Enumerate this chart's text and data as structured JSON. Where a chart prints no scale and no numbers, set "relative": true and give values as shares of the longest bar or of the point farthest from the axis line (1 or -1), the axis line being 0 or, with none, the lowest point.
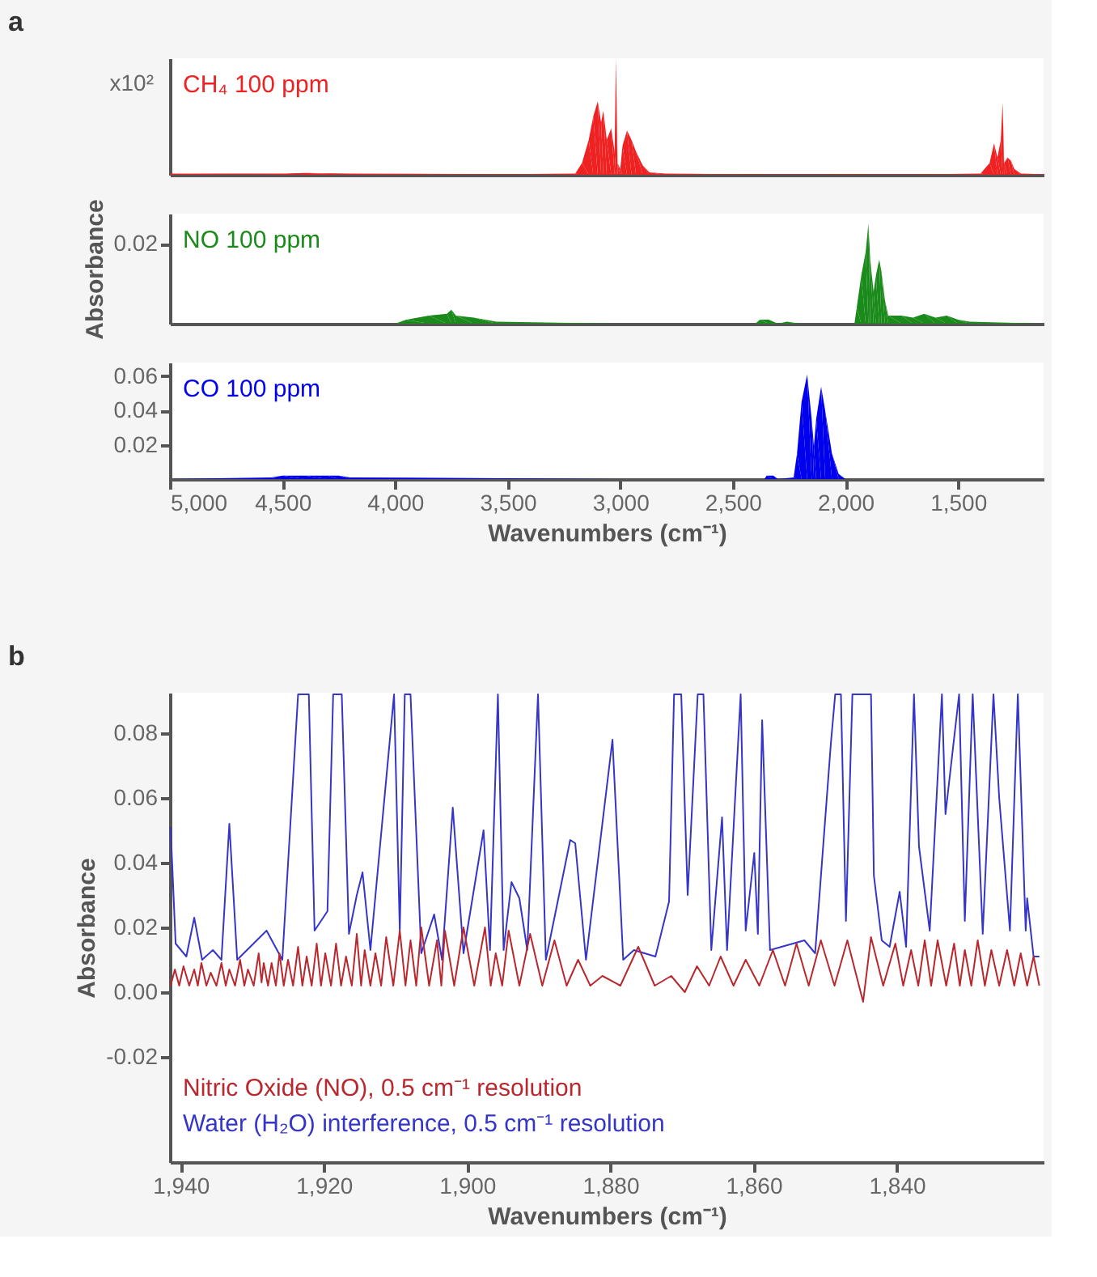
{
  "chart_data": [
    {
      "type": "area",
      "relative": true,
      "tick_labels": false,
      "xlim": [
        5000,
        1120
      ],
      "annotations": [
        "a",
        "x10²"
      ],
      "series": [
        {
          "name": "CH₄ 100 ppm",
          "color": "#ee2222",
          "x": [
            5000,
            4500,
            4400,
            4200,
            3500,
            3200,
            3170,
            3140,
            3120,
            3100,
            3085,
            3075,
            3060,
            3040,
            3025,
            3019,
            3012,
            3000,
            2990,
            2970,
            2950,
            2930,
            2900,
            2870,
            2800,
            2500,
            2000,
            1600,
            1400,
            1360,
            1340,
            1325,
            1310,
            1302,
            1295,
            1280,
            1265,
            1250,
            1220,
            1120
          ],
          "values": [
            0.01,
            0.01,
            0.015,
            0.01,
            0.005,
            0.01,
            0.1,
            0.3,
            0.5,
            0.63,
            0.45,
            0.55,
            0.3,
            0.4,
            0.2,
            1,
            0.1,
            0.05,
            0.25,
            0.38,
            0.3,
            0.2,
            0.08,
            0.02,
            0.01,
            0.005,
            0.005,
            0.005,
            0.01,
            0.1,
            0.27,
            0.15,
            0.3,
            0.62,
            0.1,
            0.15,
            0.12,
            0.05,
            0.01,
            0.005
          ]
        }
      ]
    },
    {
      "type": "area",
      "tick_labels": "y",
      "xlim": [
        5000,
        1120
      ],
      "ylim": [
        0,
        0.0275
      ],
      "yticks": [
        0.02
      ],
      "ylabel": "Absorbance",
      "series": [
        {
          "name": "NO 100 ppm",
          "color": "#1a8a1a",
          "x": [
            5000,
            4000,
            3950,
            3850,
            3770,
            3750,
            3730,
            3650,
            3550,
            3000,
            2400,
            2380,
            2340,
            2300,
            2260,
            2200,
            1960,
            1950,
            1930,
            1910,
            1898,
            1890,
            1875,
            1865,
            1850,
            1840,
            1825,
            1810,
            1750,
            1700,
            1650,
            1600,
            1550,
            1500,
            1450,
            1120
          ],
          "values": [
            0,
            0,
            0.001,
            0.002,
            0.0025,
            0.0035,
            0.002,
            0.0015,
            0.0005,
            0,
            0,
            0.001,
            0.001,
            0,
            0.0005,
            0,
            0,
            0.004,
            0.012,
            0.018,
            0.025,
            0.016,
            0.008,
            0.012,
            0.016,
            0.013,
            0.006,
            0.002,
            0.002,
            0.0015,
            0.0025,
            0.0015,
            0.002,
            0.001,
            0.0005,
            0
          ]
        }
      ]
    },
    {
      "type": "area",
      "xlim": [
        5000,
        1120
      ],
      "xticks": [
        {
          "value": 5000,
          "label": "5,000"
        },
        {
          "value": 4500,
          "label": "4,500"
        },
        {
          "value": 4000,
          "label": "4,000"
        },
        {
          "value": 3500,
          "label": "3,500"
        },
        {
          "value": 3000,
          "label": "3,000"
        },
        {
          "value": 2500,
          "label": "2,500"
        },
        {
          "value": 2000,
          "label": "2,000"
        },
        {
          "value": 1500,
          "label": "1,500"
        }
      ],
      "ylim": [
        0,
        0.068
      ],
      "yticks": [
        0.02,
        0.04,
        0.06
      ],
      "xlabel": "Wavenumbers (cm⁻¹)",
      "series": [
        {
          "name": "CO 100 ppm",
          "color": "#0000ee",
          "x": [
            5000,
            4550,
            4500,
            4400,
            4300,
            4250,
            4200,
            3000,
            2360,
            2350,
            2320,
            2300,
            2230,
            2215,
            2195,
            2170,
            2150,
            2140,
            2130,
            2108,
            2090,
            2060,
            2030,
            2000,
            1120
          ],
          "values": [
            0,
            0.001,
            0.002,
            0.002,
            0.002,
            0.002,
            0.001,
            0,
            0,
            0.002,
            0.002,
            0,
            0.001,
            0.015,
            0.045,
            0.061,
            0.035,
            0.019,
            0.035,
            0.054,
            0.04,
            0.015,
            0.003,
            0,
            0
          ]
        }
      ]
    },
    {
      "type": "line",
      "xlim": [
        1941.5,
        1819.5
      ],
      "ylim": [
        -0.0525,
        0.0925
      ],
      "xticks": [
        {
          "value": 1940,
          "label": "1,940"
        },
        {
          "value": 1920,
          "label": "1,920"
        },
        {
          "value": 1900,
          "label": "1,900"
        },
        {
          "value": 1880,
          "label": "1,880"
        },
        {
          "value": 1860,
          "label": "1,860"
        },
        {
          "value": 1840,
          "label": "1,840"
        }
      ],
      "yticks": [
        -0.02,
        {
          "value": 0,
          "label": "0.00"
        },
        0.02,
        0.04,
        0.06,
        0.08
      ],
      "xlabel": "Wavenumbers (cm⁻¹)",
      "ylabel": "Absorbance",
      "annotations": [
        "b"
      ],
      "line_style": "solid",
      "series": [
        {
          "name": "Nitric Oxide (NO), 0.5 cm⁻¹ resolution",
          "color": "#b8282e",
          "x": [
            1941.4,
            1940.8,
            1940.2,
            1939.6,
            1938.8,
            1938.1,
            1937.6,
            1937.1,
            1936.4,
            1935.8,
            1935.0,
            1934.3,
            1933.7,
            1933.2,
            1932.4,
            1931.7,
            1931.1,
            1930.6,
            1929.8,
            1929.1,
            1928.7,
            1928.4,
            1927.8,
            1927.3,
            1926.7,
            1926.2,
            1925.6,
            1925.0,
            1924.3,
            1923.6,
            1923.0,
            1922.4,
            1921.7,
            1921.0,
            1920.4,
            1919.8,
            1919.0,
            1918.3,
            1917.6,
            1916.9,
            1916.1,
            1915.4,
            1914.8,
            1914.3,
            1913.5,
            1912.8,
            1912.0,
            1911.3,
            1910.3,
            1909.4,
            1908.6,
            1907.9,
            1907.1,
            1906.4,
            1905.3,
            1904.2,
            1903.6,
            1903.1,
            1901.8,
            1900.5,
            1899.0,
            1897.5,
            1896.7,
            1896.0,
            1895.1,
            1894.2,
            1892.7,
            1891.2,
            1889.5,
            1887.8,
            1886.1,
            1884.5,
            1882.8,
            1881.1,
            1878.6,
            1876.1,
            1873.8,
            1871.5,
            1869.6,
            1867.9,
            1866.2,
            1864.6,
            1862.8,
            1861.1,
            1859.2,
            1857.3,
            1855.6,
            1854.0,
            1852.3,
            1850.6,
            1848.7,
            1846.9,
            1844.7,
            1843.6,
            1841.9,
            1840.2,
            1839.1,
            1838.0,
            1837.0,
            1836.1,
            1835.2,
            1834.3,
            1833.1,
            1832.0,
            1831.2,
            1830.5,
            1829.6,
            1828.7,
            1827.7,
            1826.8,
            1825.7,
            1824.6,
            1823.6,
            1822.7,
            1821.8,
            1820.9,
            1820.1
          ],
          "values": [
            0.002,
            0.007,
            0.002,
            0.008,
            0.002,
            0.007,
            0.002,
            0.009,
            0.002,
            0.006,
            0.002,
            0.009,
            0.002,
            0.007,
            0.002,
            0.01,
            0.002,
            0.007,
            0.002,
            0.012,
            0.003,
            0.009,
            0.002,
            0.009,
            0.002,
            0.012,
            0.002,
            0.01,
            0.002,
            0.014,
            0.002,
            0.011,
            0.002,
            0.015,
            0.002,
            0.012,
            0.002,
            0.015,
            0.002,
            0.011,
            0.002,
            0.018,
            0.002,
            0.013,
            0.002,
            0.012,
            0.002,
            0.017,
            0.002,
            0.019,
            0.002,
            0.016,
            0.002,
            0.02,
            0.002,
            0.016,
            0.002,
            0.019,
            0.002,
            0.02,
            0.002,
            0.02,
            0.002,
            0.012,
            0.002,
            0.019,
            0.002,
            0.018,
            0.002,
            0.016,
            0.002,
            0.01,
            0.002,
            0.005,
            0.002,
            0.014,
            0.002,
            0.005,
            0.0,
            0.008,
            0.002,
            0.011,
            0.002,
            0.01,
            0.002,
            0.013,
            0.002,
            0.015,
            0.002,
            0.016,
            0.002,
            0.016,
            -0.003,
            0.017,
            0.002,
            0.015,
            0.002,
            0.013,
            0.002,
            0.016,
            0.002,
            0.016,
            0.002,
            0.015,
            0.002,
            0.013,
            0.002,
            0.016,
            0.002,
            0.013,
            0.002,
            0.013,
            0.002,
            0.012,
            0.002,
            0.011,
            0.002
          ]
        },
        {
          "name": "Water (H₂O) interference, 0.5 cm⁻¹ resolution",
          "color": "#3535c8",
          "x": [
            1941.4,
            1940.7,
            1939.2,
            1938.1,
            1937.0,
            1935.5,
            1934.3,
            1933.2,
            1932.1,
            1928.0,
            1925.8,
            1923.6,
            1922.1,
            1921.3,
            1919.5,
            1918.7,
            1917.5,
            1916.5,
            1915.4,
            1914.6,
            1913.5,
            1910.2,
            1909.4,
            1908.7,
            1907.9,
            1906.4,
            1904.6,
            1903.5,
            1902.0,
            1900.5,
            1897.7,
            1896.8,
            1895.7,
            1894.9,
            1893.8,
            1892.7,
            1891.6,
            1890.1,
            1889.0,
            1885.6,
            1884.9,
            1883.4,
            1879.7,
            1878.2,
            1876.7,
            1873.7,
            1871.8,
            1871.1,
            1870.1,
            1869.2,
            1867.8,
            1867.0,
            1865.9,
            1864.4,
            1863.7,
            1861.8,
            1861.1,
            1859.9,
            1859.4,
            1858.8,
            1857.7,
            1852.9,
            1851.4,
            1849.2,
            1848.6,
            1847.8,
            1847.1,
            1846.2,
            1843.6,
            1843.2,
            1842.1,
            1841.0,
            1839.6,
            1838.7,
            1837.6,
            1836.9,
            1835.4,
            1833.7,
            1833.2,
            1831.3,
            1830.5,
            1829.4,
            1828.0,
            1826.5,
            1825.7,
            1824.2,
            1823.1,
            1822.0,
            1821.8,
            1820.9,
            1820.1
          ],
          "values": [
            0.051,
            0.015,
            0.011,
            0.023,
            0.01,
            0.013,
            0.01,
            0.052,
            0.01,
            0.019,
            0.01,
            0.092,
            0.092,
            0.019,
            0.025,
            0.092,
            0.092,
            0.018,
            0.03,
            0.037,
            0.013,
            0.092,
            0.019,
            0.092,
            0.092,
            0.012,
            0.024,
            0.01,
            0.057,
            0.012,
            0.05,
            0.013,
            0.092,
            0.013,
            0.034,
            0.029,
            0.013,
            0.092,
            0.01,
            0.047,
            0.046,
            0.01,
            0.078,
            0.01,
            0.013,
            0.011,
            0.028,
            0.092,
            0.092,
            0.03,
            0.092,
            0.092,
            0.013,
            0.054,
            0.013,
            0.092,
            0.019,
            0.043,
            0.018,
            0.084,
            0.013,
            0.016,
            0.012,
            0.077,
            0.092,
            0.092,
            0.022,
            0.092,
            0.092,
            0.036,
            0.016,
            0.014,
            0.031,
            0.014,
            0.092,
            0.045,
            0.019,
            0.092,
            0.055,
            0.092,
            0.022,
            0.092,
            0.018,
            0.092,
            0.06,
            0.019,
            0.092,
            0.019,
            0.029,
            0.011,
            0.011
          ]
        }
      ]
    }
  ]
}
